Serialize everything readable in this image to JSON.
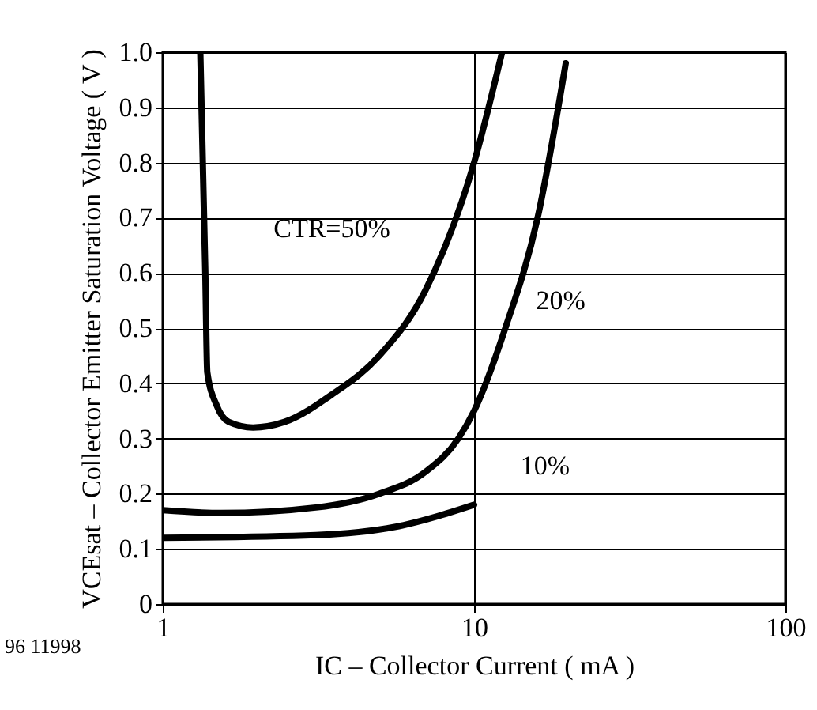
{
  "chart_data": {
    "type": "line",
    "xlabel": "IC – Collector Current ( mA )",
    "ylabel": "VCEsat – Collector Emitter Saturation Voltage ( V )",
    "log": "x",
    "xlim": [
      1,
      100
    ],
    "xticks": [
      1,
      10,
      100
    ],
    "ylim": [
      0,
      1
    ],
    "yticks": [
      {
        "value": 0,
        "label": "0"
      },
      0.1,
      0.2,
      0.3,
      0.4,
      0.5,
      0.6,
      0.7,
      0.8,
      0.9,
      {
        "value": 1,
        "label": "1.0"
      }
    ],
    "grid": true,
    "marker": "none",
    "line_style": "solid",
    "series": [
      {
        "name": "CTR=50%",
        "color": "#000000",
        "x": [
          1.32,
          1.37,
          1.39,
          1.49,
          1.63,
          1.95,
          2.46,
          3.5,
          4.96,
          7.0,
          10,
          12.3
        ],
        "values": [
          1.0,
          0.6,
          0.42,
          0.36,
          0.33,
          0.32,
          0.33,
          0.38,
          0.45,
          0.57,
          0.8,
          1.0
        ]
      },
      {
        "name": "20%",
        "color": "#000000",
        "x": [
          1,
          1.54,
          3.1,
          4.96,
          7.0,
          8.9,
          10,
          12.6,
          16,
          19.7
        ],
        "values": [
          0.17,
          0.165,
          0.175,
          0.2,
          0.24,
          0.3,
          0.35,
          0.5,
          0.7,
          0.98
        ]
      },
      {
        "name": "10%",
        "color": "#000000",
        "x": [
          1,
          3.1,
          5.6,
          10
        ],
        "values": [
          0.12,
          0.125,
          0.14,
          0.18
        ]
      }
    ],
    "annotations": [
      "96 11998"
    ]
  }
}
